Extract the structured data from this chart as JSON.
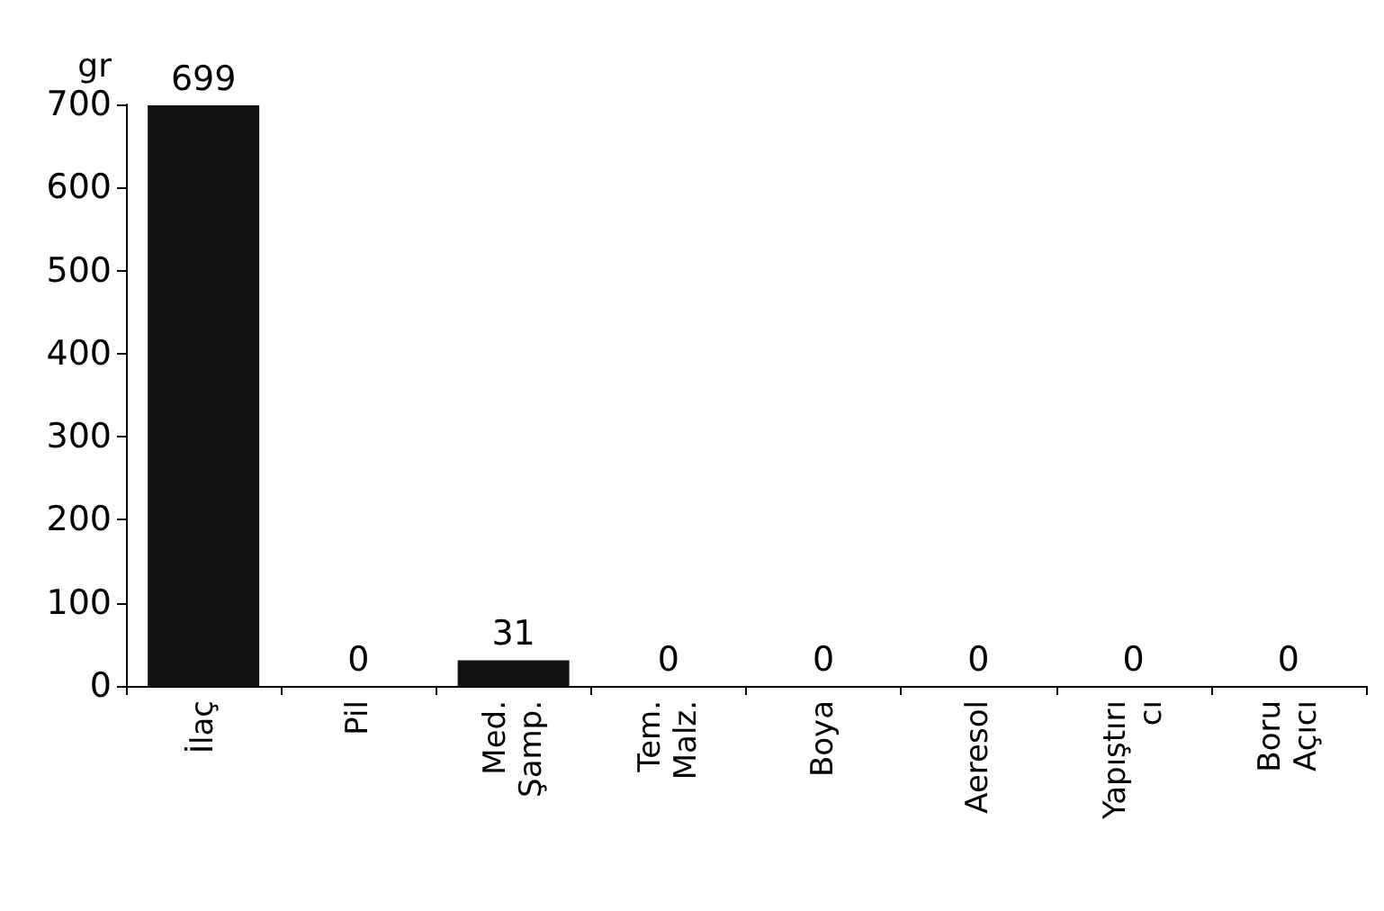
{
  "chart_data": {
    "type": "bar",
    "ylabel": "gr",
    "categories": [
      "İlaç",
      "Pil",
      "Med. Şamp.",
      "Tem. Malz.",
      "Boya",
      "Aeresol",
      "Yapıştırıcı",
      "Boru Açıcı"
    ],
    "values": [
      699,
      0,
      31,
      0,
      0,
      0,
      0,
      0
    ],
    "color": "#111111",
    "ylim": [
      0,
      700
    ],
    "yticks": [
      0,
      100,
      200,
      300,
      400,
      500,
      600,
      700
    ],
    "data_labels": true,
    "grid": false
  }
}
